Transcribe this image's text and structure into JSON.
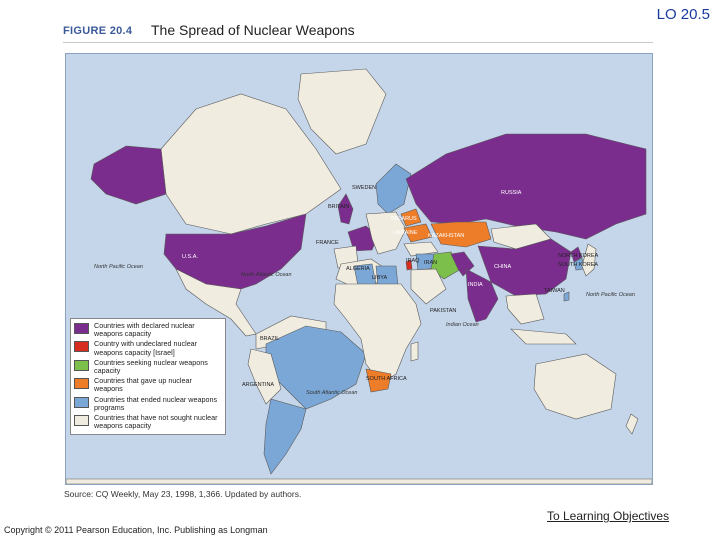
{
  "slide": {
    "lo_label": "LO 20.5",
    "link": "To Learning Objectives",
    "copyright": "Copyright © 2011 Pearson Education, Inc. Publishing as Longman"
  },
  "figure": {
    "number": "FIGURE 20.4",
    "title": "The Spread of Nuclear Weapons",
    "source": "Source: CQ Weekly, May 23, 1998, 1,366. Updated by authors."
  },
  "colors": {
    "ocean": "#c5d6ea",
    "declared": "#7b2d8e",
    "undeclared": "#d62d20",
    "seeking": "#7cbf4a",
    "gave_up": "#ee7d2a",
    "ended": "#7ba7d7",
    "never": "#f1ece0"
  },
  "legend": [
    {
      "key": "declared",
      "text": "Countries with declared nuclear weapons capacity"
    },
    {
      "key": "undeclared",
      "text": "Country with undeclared nuclear weapons capacity [Israel]"
    },
    {
      "key": "seeking",
      "text": "Countries seeking nuclear weapons capacity"
    },
    {
      "key": "gave_up",
      "text": "Countries that gave up nuclear weapons"
    },
    {
      "key": "ended",
      "text": "Countries that ended nuclear weapons programs"
    },
    {
      "key": "never",
      "text": "Countries that have not sought nuclear weapons capacity"
    }
  ],
  "map_labels": {
    "countries": {
      "usa": "U.S.A.",
      "russia": "RUSSIA",
      "china": "CHINA",
      "india": "INDIA",
      "pakistan": "PAKISTAN",
      "north_korea": "NORTH KOREA",
      "south_korea": "SOUTH KOREA",
      "taiwan": "TAIWAN",
      "britain": "BRITAIN",
      "france": "FRANCE",
      "sweden": "SWEDEN",
      "belarus": "BELARUS",
      "ukraine": "UKRAINE",
      "kazakhstan": "KAZAKHSTAN",
      "iran": "IRAN",
      "iraq": "IRAQ",
      "libya": "LIBYA",
      "algeria": "ALGERIA",
      "brazil": "BRAZIL",
      "argentina": "ARGENTINA",
      "south_africa": "SOUTH AFRICA"
    },
    "oceans": {
      "north_pacific": "North Pacific Ocean",
      "north_atlantic": "North Atlantic Ocean",
      "south_atlantic": "South Atlantic Ocean",
      "indian": "Indian Ocean",
      "north_pacific_east": "North Pacific Ocean"
    }
  }
}
